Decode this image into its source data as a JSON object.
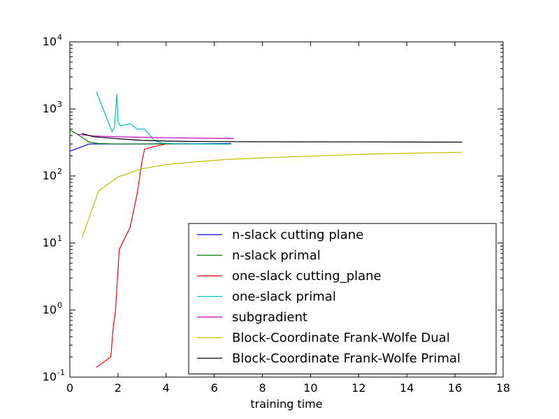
{
  "chart_data": {
    "type": "line",
    "title": "",
    "xlabel": "training time",
    "ylabel": "",
    "xlim": [
      0,
      18
    ],
    "ylim": [
      0.1,
      10000
    ],
    "yscale": "log",
    "grid": false,
    "legend_position": "bottom-right",
    "x_ticks": [
      0,
      2,
      4,
      6,
      8,
      10,
      12,
      14,
      16,
      18
    ],
    "y_ticks": [
      {
        "value": 0.1,
        "base": "10",
        "exp": "-1"
      },
      {
        "value": 1,
        "base": "10",
        "exp": "0"
      },
      {
        "value": 10,
        "base": "10",
        "exp": "1"
      },
      {
        "value": 100,
        "base": "10",
        "exp": "2"
      },
      {
        "value": 1000,
        "base": "10",
        "exp": "3"
      },
      {
        "value": 10000,
        "base": "10",
        "exp": "4"
      }
    ],
    "series": [
      {
        "name": "n-slack cutting plane",
        "color": "#0000ff",
        "x": [
          0.0,
          0.8,
          1.5,
          2.5,
          4.0,
          5.5,
          6.7
        ],
        "y": [
          235,
          300,
          300,
          300,
          302,
          303,
          305
        ]
      },
      {
        "name": "n-slack primal",
        "color": "#008000",
        "x": [
          0.0,
          0.4,
          0.8,
          1.2,
          2.0,
          3.0,
          4.0,
          5.5,
          6.7
        ],
        "y": [
          485,
          400,
          320,
          305,
          300,
          300,
          300,
          300,
          300
        ]
      },
      {
        "name": "one-slack cutting_plane",
        "color": "#ff0000",
        "x": [
          1.1,
          1.7,
          1.8,
          1.9,
          2.05,
          2.5,
          2.8,
          3.0,
          3.1,
          3.5,
          4.0
        ],
        "y": [
          0.14,
          0.2,
          0.55,
          1.0,
          8,
          17,
          55,
          170,
          250,
          275,
          300
        ]
      },
      {
        "name": "one-slack primal",
        "color": "#00bfbf",
        "x": [
          1.1,
          1.75,
          1.85,
          1.95,
          2.0,
          2.1,
          2.5,
          2.8,
          3.1,
          3.5,
          3.8,
          4.5,
          5.5,
          6.7
        ],
        "y": [
          1800,
          460,
          520,
          1680,
          640,
          560,
          600,
          500,
          500,
          340,
          310,
          302,
          300,
          300
        ]
      },
      {
        "name": "subgradient",
        "color": "#bf00bf",
        "x": [
          0.3,
          1.0,
          2.0,
          3.0,
          4.0,
          5.0,
          6.0,
          6.8
        ],
        "y": [
          420,
          395,
          385,
          378,
          372,
          368,
          364,
          362
        ]
      },
      {
        "name": "Block-Coordinate Frank-Wolfe Dual",
        "color": "#bfbf00",
        "x": [
          0.5,
          1.2,
          2.0,
          3.0,
          4.0,
          5.0,
          6.5,
          8.0,
          10.0,
          12.5,
          14.5,
          16.3
        ],
        "y": [
          12,
          60,
          97,
          128,
          148,
          160,
          176,
          186,
          197,
          213,
          220,
          225
        ]
      },
      {
        "name": "Block-Coordinate Frank-Wolfe Primal",
        "color": "#000000",
        "x": [
          0.5,
          1.0,
          2.0,
          3.0,
          4.0,
          5.0,
          6.0,
          8.0,
          10.0,
          12.0,
          14.0,
          16.3
        ],
        "y": [
          430,
          385,
          360,
          340,
          332,
          328,
          326,
          324,
          323,
          322,
          321,
          320
        ]
      }
    ]
  }
}
